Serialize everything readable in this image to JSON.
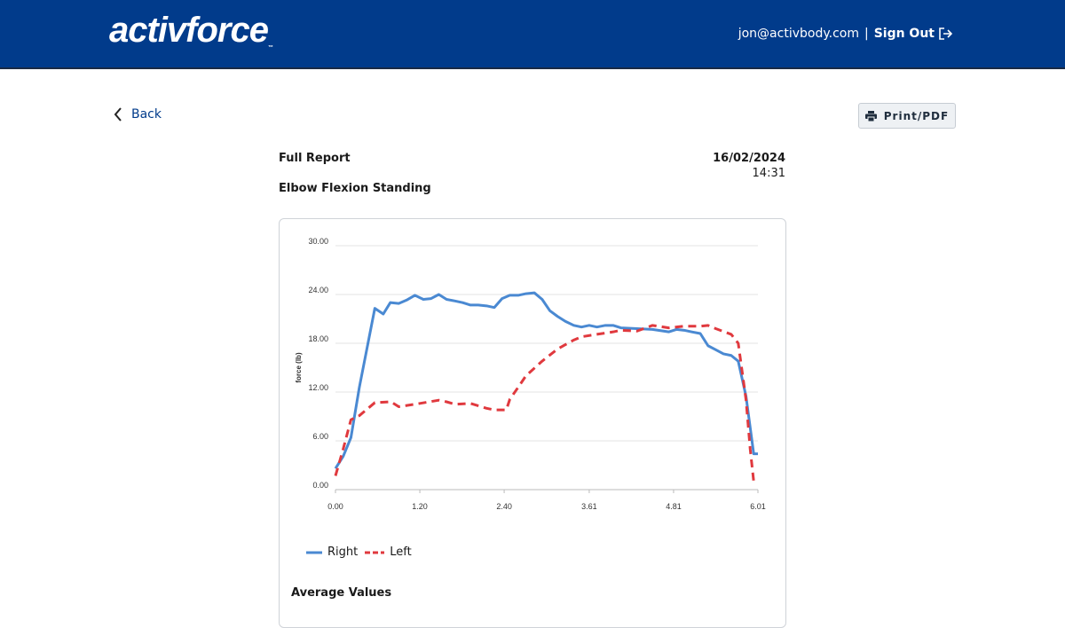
{
  "header": {
    "logo": "activforce",
    "logo_tm": "™",
    "email": "jon@activbody.com",
    "separator": "|",
    "sign_out": "Sign Out"
  },
  "nav": {
    "back": "Back",
    "print": "Print/PDF"
  },
  "report": {
    "title": "Full Report",
    "exercise": "Elbow Flexion Standing",
    "date": "16/02/2024",
    "time": "14:31",
    "average_heading": "Average Values"
  },
  "colors": {
    "brand": "#013b8b",
    "right": "#4a89d2",
    "left": "#e0393e"
  },
  "chart_data": {
    "type": "line",
    "ylabel": "force (lb)",
    "xlabel": "",
    "ylim": [
      0,
      30
    ],
    "xlim": [
      0,
      6.01
    ],
    "yticks": [
      "0.00",
      "6.00",
      "12.00",
      "18.00",
      "24.00",
      "30.00"
    ],
    "xticks": [
      "0.00",
      "1.20",
      "2.40",
      "3.61",
      "4.81",
      "6.01"
    ],
    "legend": "bottom-left",
    "series": [
      {
        "name": "Right",
        "style": "solid",
        "x": [
          0,
          0.11,
          0.22,
          0.34,
          0.56,
          0.68,
          0.78,
          0.9,
          1.01,
          1.13,
          1.25,
          1.36,
          1.47,
          1.58,
          1.7,
          1.81,
          1.92,
          2.03,
          2.15,
          2.26,
          2.37,
          2.48,
          2.6,
          2.71,
          2.83,
          2.94,
          3.05,
          3.16,
          3.27,
          3.39,
          3.5,
          3.61,
          3.72,
          3.84,
          3.95,
          4.06,
          4.29,
          4.51,
          4.74,
          4.85,
          4.96,
          5.07,
          5.19,
          5.3,
          5.41,
          5.52,
          5.63,
          5.73,
          5.84,
          5.95,
          6.01
        ],
        "y": [
          2.6,
          4.1,
          6.4,
          12.6,
          22.3,
          21.6,
          23.0,
          22.9,
          23.3,
          23.9,
          23.4,
          23.5,
          24.0,
          23.4,
          23.2,
          23.0,
          22.7,
          22.7,
          22.6,
          22.4,
          23.5,
          23.9,
          23.9,
          24.1,
          24.2,
          23.4,
          22.0,
          21.3,
          20.7,
          20.2,
          20.0,
          20.2,
          20.0,
          20.2,
          20.2,
          19.9,
          19.8,
          19.7,
          19.4,
          19.7,
          19.6,
          19.4,
          19.2,
          17.7,
          17.2,
          16.7,
          16.5,
          15.8,
          11.5,
          4.4,
          4.4
        ]
      },
      {
        "name": "Left",
        "style": "dashed",
        "x": [
          0,
          0.11,
          0.22,
          0.34,
          0.45,
          0.56,
          0.79,
          0.9,
          1.13,
          1.47,
          1.58,
          1.7,
          1.92,
          2.15,
          2.26,
          2.43,
          2.48,
          2.6,
          2.71,
          2.94,
          3.16,
          3.39,
          3.5,
          3.72,
          3.95,
          4.06,
          4.29,
          4.51,
          4.74,
          4.96,
          5.19,
          5.3,
          5.41,
          5.63,
          5.73,
          5.84,
          5.9,
          5.95
        ],
        "y": [
          1.7,
          5.0,
          8.6,
          9.1,
          9.9,
          10.7,
          10.8,
          10.2,
          10.5,
          11.0,
          10.8,
          10.5,
          10.6,
          10.0,
          9.8,
          9.8,
          11.1,
          12.6,
          14.0,
          15.8,
          17.3,
          18.4,
          18.8,
          19.1,
          19.4,
          19.6,
          19.5,
          20.2,
          19.9,
          20.1,
          20.1,
          20.2,
          19.8,
          19.1,
          18.0,
          11.1,
          5.0,
          1.0
        ]
      }
    ]
  }
}
